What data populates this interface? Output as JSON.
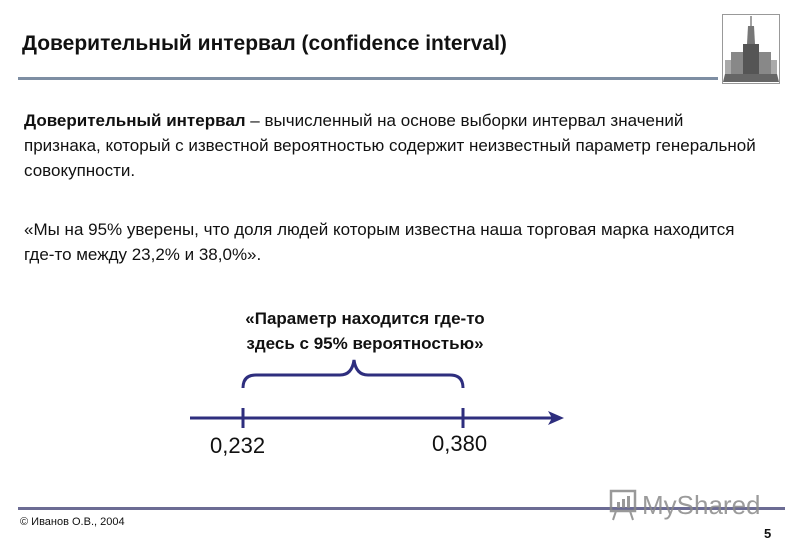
{
  "slide": {
    "title": "Доверительный интервал (confidence interval)",
    "definition_term": "Доверительный интервал",
    "definition_rest": " – вычисленный на основе выборки интервал значений признака, который с известной вероятностью содержит неизвестный параметр генеральной совокупности.",
    "quote": "«Мы на 95% уверены, что доля людей которым известна наша торговая марка находится где-то между 23,2% и 38,0%».",
    "callout_line1": "«Параметр находится где-то",
    "callout_line2": "здесь с 95% вероятностью»",
    "interval_low": "0,232",
    "interval_high": "0,380",
    "accent_color": "#2e2e7e"
  },
  "footer": {
    "copyright": "© Иванов О.В., 2004",
    "page_number": "5",
    "watermark": "MyShared"
  },
  "logo": {
    "icon": "university-building-icon"
  }
}
